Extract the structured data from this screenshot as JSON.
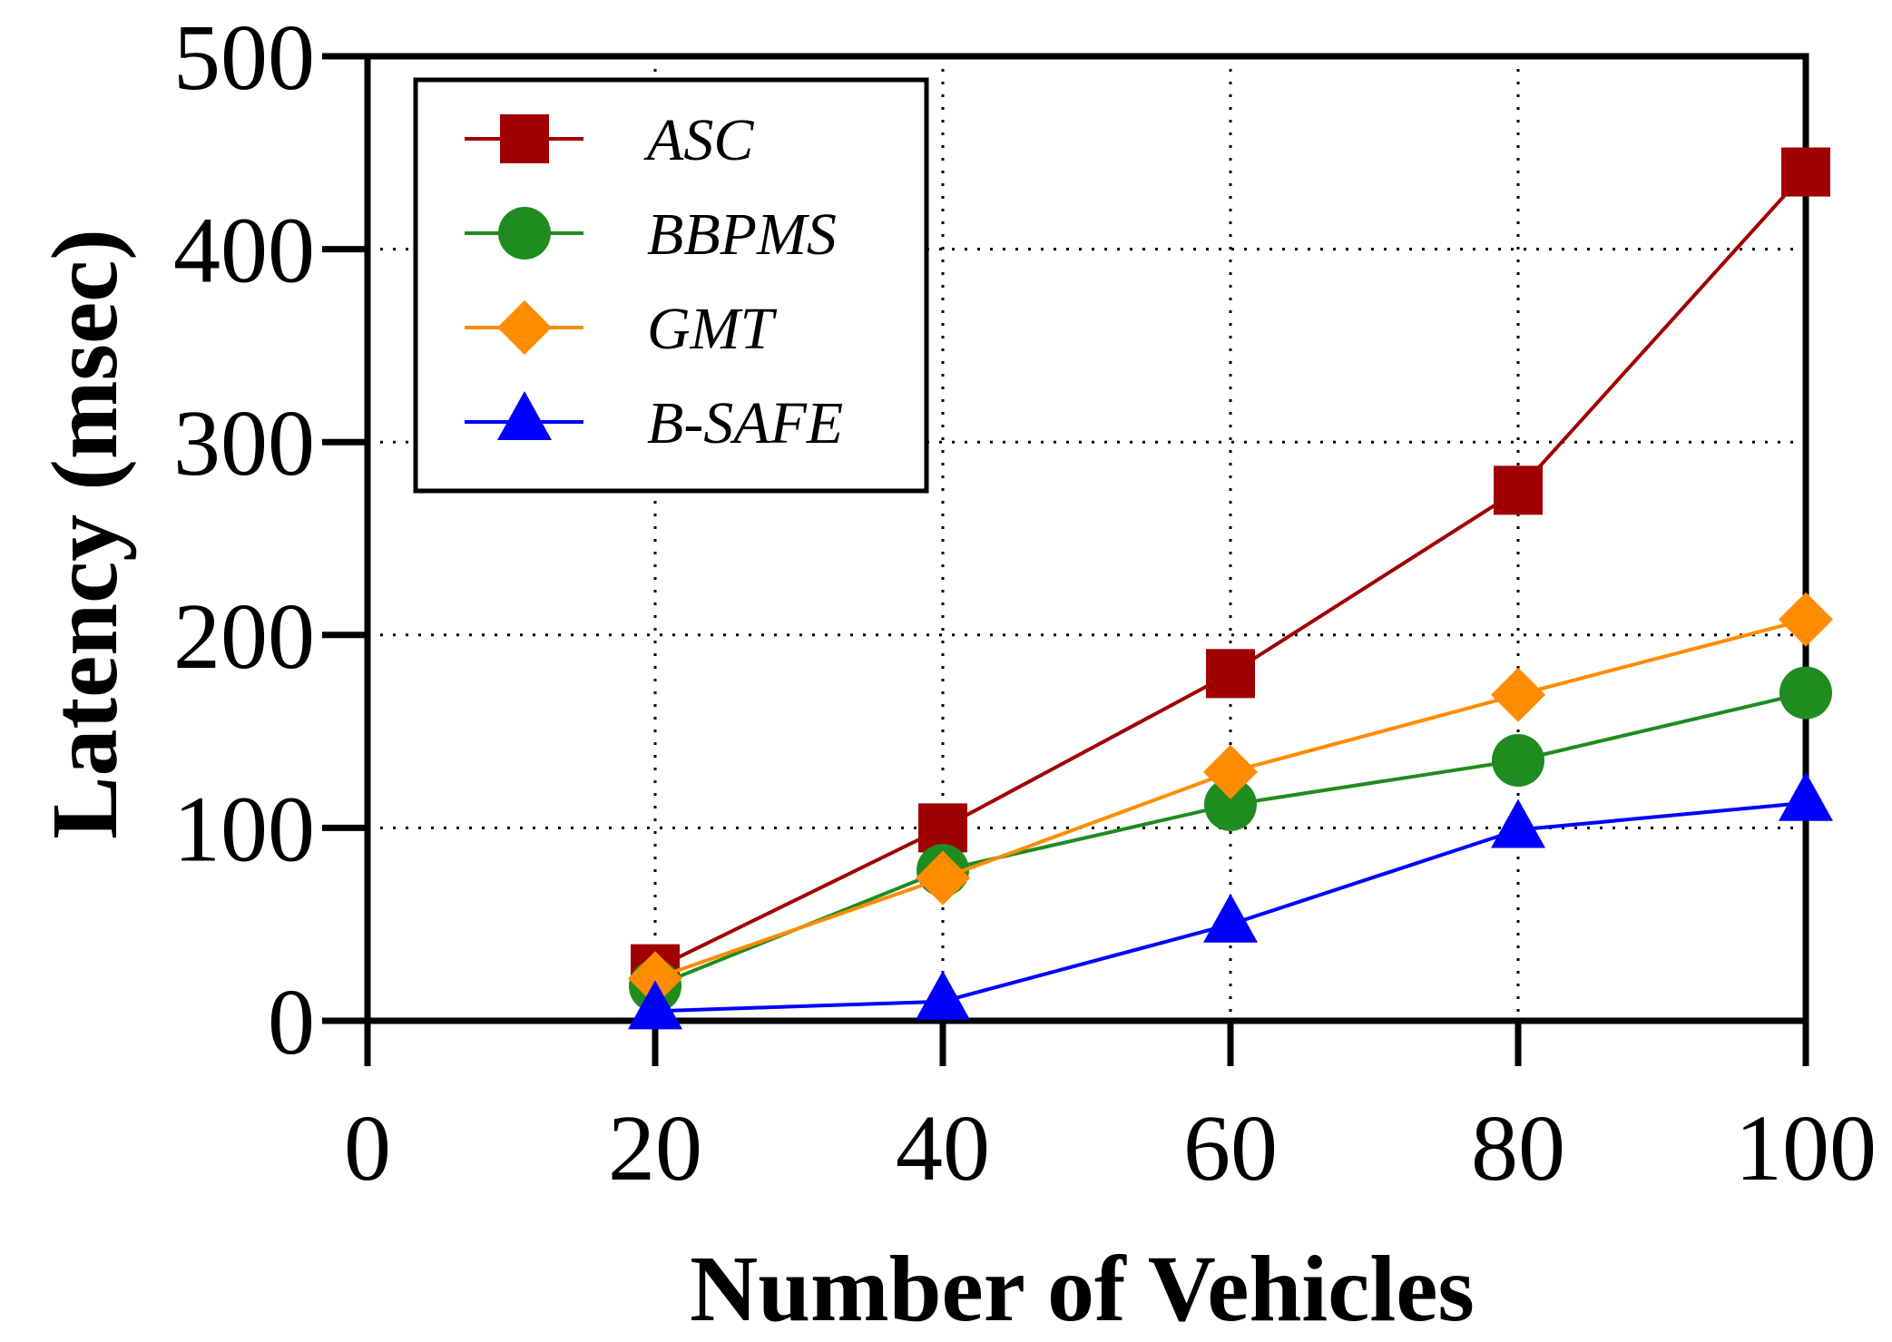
{
  "chart_data": {
    "type": "line",
    "title": "",
    "xlabel": "Number of Vehicles",
    "ylabel": "Latency (msec)",
    "xlim": [
      0,
      100
    ],
    "ylim": [
      0,
      500
    ],
    "xticks": [
      0,
      20,
      40,
      60,
      80,
      100
    ],
    "yticks": [
      0,
      100,
      200,
      300,
      400,
      500
    ],
    "xtick_labels": [
      "0",
      "20",
      "40",
      "60",
      "80",
      "100"
    ],
    "ytick_labels": [
      "0",
      "100",
      "200",
      "300",
      "400",
      "500"
    ],
    "grid": true,
    "legend_position": "top-left",
    "x": [
      20,
      40,
      60,
      80,
      100
    ],
    "series": [
      {
        "name": "ASC",
        "color": "#a00000",
        "marker": "square",
        "values": [
          27,
          100,
          180,
          275,
          440
        ]
      },
      {
        "name": "BBPMS",
        "color": "#1e8c1e",
        "marker": "circle",
        "values": [
          18,
          78,
          112,
          135,
          170
        ]
      },
      {
        "name": "GMT",
        "color": "#ff8c00",
        "marker": "diamond",
        "values": [
          22,
          74,
          129,
          169,
          208
        ]
      },
      {
        "name": "B-SAFE",
        "color": "#0000ff",
        "marker": "triangle",
        "values": [
          5,
          10,
          50,
          99,
          113
        ]
      }
    ]
  }
}
